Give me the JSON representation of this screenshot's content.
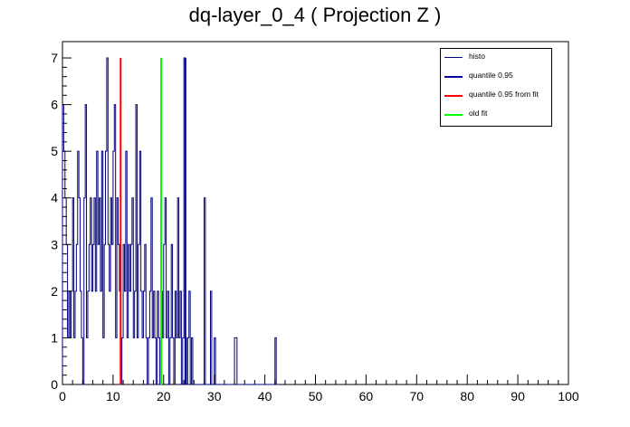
{
  "title": "dq-layer_0_4 ( Projection Z )",
  "legend": [
    {
      "label": "histo",
      "color": "#000080",
      "width": 1
    },
    {
      "label": "quantile 0.95",
      "color": "#000099",
      "width": 2
    },
    {
      "label": "quantile 0.95 from fit",
      "color": "#ff0000",
      "width": 2
    },
    {
      "label": "old fit",
      "color": "#00ff00",
      "width": 2
    }
  ],
  "chart_data": {
    "type": "bar",
    "title": "dq-layer_0_4 ( Projection Z )",
    "xlabel": "",
    "ylabel": "",
    "xlim": [
      0,
      100
    ],
    "ylim": [
      0,
      7.35
    ],
    "x_ticks": [
      0,
      10,
      20,
      30,
      40,
      50,
      60,
      70,
      80,
      90,
      100
    ],
    "y_ticks": [
      0,
      1,
      2,
      3,
      4,
      5,
      6,
      7
    ],
    "bin_width": 0.25,
    "series": [
      {
        "name": "histo",
        "color": "#000080",
        "x": [
          0,
          0.25,
          0.5,
          0.75,
          1,
          1.25,
          1.5,
          1.75,
          2,
          2.25,
          2.5,
          2.75,
          3,
          3.25,
          3.5,
          3.75,
          4,
          4.25,
          4.5,
          4.75,
          5,
          5.25,
          5.5,
          5.75,
          6,
          6.25,
          6.5,
          6.75,
          7,
          7.25,
          7.5,
          7.75,
          8,
          8.25,
          8.5,
          8.75,
          9,
          9.25,
          9.5,
          9.75,
          10,
          10.25,
          10.5,
          10.75,
          11,
          11.25,
          11.5,
          11.75,
          12,
          12.25,
          12.5,
          12.75,
          13,
          13.25,
          13.5,
          13.75,
          14,
          14.25,
          14.5,
          14.75,
          15,
          15.25,
          15.5,
          15.75,
          16,
          16.25,
          16.5,
          16.75,
          17,
          17.25,
          17.5,
          17.75,
          18,
          18.25,
          18.5,
          18.75,
          19,
          19.25,
          19.5,
          19.75,
          20,
          20.25,
          20.5,
          20.75,
          21,
          21.25,
          21.5,
          21.75,
          22,
          22.25,
          22.5,
          22.75,
          23,
          23.25,
          23.5,
          23.75,
          24,
          24.25,
          24.5,
          24.75,
          25,
          25.25,
          25.5,
          25.75,
          26,
          26.25,
          26.5,
          26.75,
          27,
          27.25,
          27.5,
          27.75,
          28,
          28.25,
          28.5,
          28.75,
          29,
          29.25,
          29.5,
          29.75,
          30,
          30.25,
          30.5,
          30.75,
          31,
          31.25,
          31.5,
          31.75,
          32,
          32.25,
          32.5,
          32.75,
          33,
          33.25,
          33.5,
          33.75,
          34,
          34.25,
          34.5,
          34.75,
          35,
          35.25,
          35.5,
          35.75,
          36,
          36.25,
          36.5,
          36.75,
          37,
          37.25,
          37.5,
          37.75,
          38,
          38.25,
          38.5,
          38.75,
          39,
          39.25,
          39.5,
          39.75,
          40,
          40.25,
          40.5,
          40.75,
          41,
          41.25,
          41.5,
          41.75,
          42,
          42.25
        ],
        "values": [
          6,
          5,
          4,
          3,
          1,
          2,
          1,
          2,
          4,
          1,
          2,
          3,
          5,
          4,
          2,
          1,
          0,
          4,
          6,
          1,
          2,
          3,
          4,
          2,
          3,
          4,
          2,
          5,
          3,
          4,
          2,
          5,
          1,
          3,
          5,
          7,
          3,
          2,
          4,
          3,
          5,
          6,
          1,
          4,
          3,
          2,
          0,
          1,
          3,
          2,
          5,
          1,
          3,
          2,
          3,
          4,
          1,
          2,
          6,
          1,
          3,
          5,
          2,
          1,
          2,
          3,
          1,
          0,
          1,
          2,
          4,
          1,
          2,
          1,
          0,
          2,
          1,
          0,
          2,
          1,
          3,
          4,
          1,
          2,
          0,
          1,
          3,
          1,
          0,
          2,
          1,
          4,
          1,
          2,
          0,
          1,
          7,
          1,
          0,
          1,
          2,
          0,
          1,
          0,
          0,
          0,
          0,
          0,
          0,
          0,
          0,
          0,
          4,
          0,
          0,
          0,
          0,
          2,
          0,
          0,
          1,
          0,
          0,
          0,
          0,
          0,
          0,
          0,
          0,
          0,
          0,
          0,
          0,
          0,
          0,
          0,
          1,
          1,
          0,
          0,
          0,
          0,
          0,
          0,
          0,
          0,
          0,
          0,
          0,
          0,
          0,
          0,
          0,
          0,
          0,
          0,
          0,
          0,
          0,
          0,
          0,
          0,
          0,
          0,
          0,
          0,
          0,
          0,
          1,
          0
        ]
      }
    ],
    "vlines": [
      {
        "name": "quantile 0.95",
        "x": 24.3,
        "y": 7,
        "color": "#000099"
      },
      {
        "name": "quantile 0.95 from fit",
        "x": 11.5,
        "y": 7,
        "color": "#ff0000"
      },
      {
        "name": "old fit",
        "x": 19.5,
        "y": 7,
        "color": "#00ff00"
      }
    ]
  }
}
